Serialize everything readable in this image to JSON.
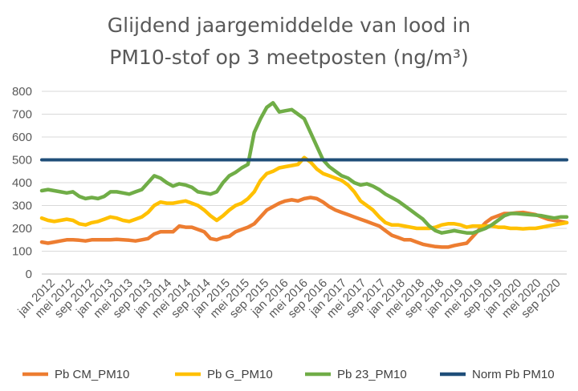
{
  "chart_data": {
    "type": "line",
    "title": [
      "Glijdend jaargemiddelde van lood in",
      "PM10-stof op 3 meetposten (ng/m³)"
    ],
    "xlabel": "",
    "ylabel": "",
    "ylim": [
      0,
      800
    ],
    "yticks": [
      "0",
      "100",
      "200",
      "300",
      "400",
      "500",
      "600",
      "700",
      "800"
    ],
    "x_tick_labels": [
      "jan 2012",
      "mei 2012",
      "sep 2012",
      "jan 2013",
      "mei 2013",
      "sep 2013",
      "jan 2014",
      "mei 2014",
      "sep 2014",
      "jan 2015",
      "mei 2015",
      "sep 2015",
      "jan 2016",
      "mei 2016",
      "sep 2016",
      "jan 2017",
      "mei 2017",
      "sep 2017",
      "jan 2018",
      "mei 2018",
      "sep 2018",
      "jan 2019",
      "mei 2019",
      "sep 2019",
      "jan 2020",
      "mei 2020",
      "sep 2020"
    ],
    "grid": "horizontal",
    "legend_position": "bottom",
    "series": [
      {
        "name": "Pb CM_PM10",
        "color": "#ED7D31",
        "values": [
          140,
          135,
          140,
          145,
          150,
          150,
          148,
          145,
          150,
          150,
          150,
          150,
          152,
          150,
          148,
          145,
          150,
          155,
          175,
          185,
          185,
          185,
          210,
          205,
          205,
          195,
          185,
          155,
          150,
          160,
          165,
          185,
          195,
          205,
          220,
          250,
          280,
          295,
          310,
          320,
          325,
          320,
          330,
          335,
          330,
          315,
          295,
          280,
          270,
          260,
          250,
          240,
          230,
          220,
          210,
          190,
          170,
          160,
          150,
          150,
          140,
          130,
          125,
          120,
          118,
          118,
          125,
          130,
          135,
          165,
          195,
          225,
          245,
          255,
          265,
          265,
          268,
          270,
          265,
          260,
          250,
          240,
          235,
          230,
          225
        ]
      },
      {
        "name": "Pb G_PM10",
        "color": "#FFC000",
        "values": [
          245,
          235,
          230,
          235,
          240,
          235,
          220,
          215,
          225,
          230,
          240,
          250,
          245,
          235,
          230,
          240,
          250,
          270,
          300,
          315,
          310,
          310,
          315,
          320,
          310,
          300,
          280,
          255,
          235,
          255,
          280,
          300,
          310,
          330,
          360,
          410,
          440,
          450,
          465,
          470,
          475,
          480,
          510,
          490,
          460,
          440,
          430,
          420,
          410,
          390,
          360,
          320,
          300,
          280,
          250,
          225,
          215,
          215,
          210,
          205,
          200,
          200,
          200,
          205,
          215,
          220,
          220,
          215,
          205,
          210,
          210,
          210,
          210,
          205,
          205,
          200,
          200,
          198,
          200,
          200,
          205,
          210,
          215,
          220,
          225
        ]
      },
      {
        "name": "Pb 23_PM10",
        "color": "#70AD47",
        "values": [
          365,
          370,
          365,
          360,
          355,
          360,
          340,
          330,
          335,
          330,
          340,
          360,
          360,
          355,
          350,
          360,
          370,
          400,
          430,
          420,
          400,
          385,
          395,
          390,
          380,
          360,
          355,
          350,
          360,
          400,
          430,
          445,
          465,
          480,
          620,
          680,
          730,
          750,
          710,
          715,
          720,
          700,
          680,
          620,
          560,
          500,
          470,
          450,
          430,
          420,
          400,
          390,
          395,
          385,
          370,
          350,
          335,
          320,
          300,
          280,
          260,
          240,
          210,
          190,
          180,
          185,
          190,
          185,
          180,
          180,
          190,
          200,
          215,
          235,
          255,
          265,
          265,
          262,
          260,
          258,
          255,
          250,
          245,
          250,
          250
        ]
      },
      {
        "name": "Norm Pb PM10",
        "color": "#1F4E79",
        "values": [
          500,
          500
        ]
      }
    ]
  }
}
